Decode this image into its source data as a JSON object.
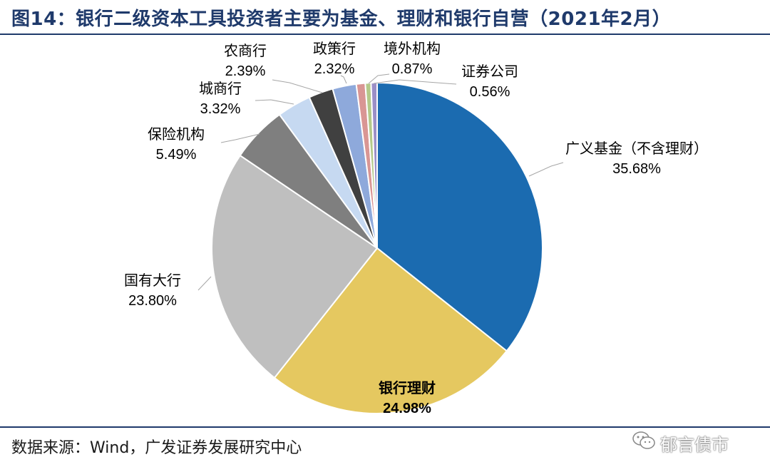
{
  "header": {
    "title": "图14：银行二级资本工具投资者主要为基金、理财和银行自营（2021年2月）"
  },
  "footer": {
    "source": "数据来源：Wind，广发证券发展研究中心",
    "watermark": "郁言债市",
    "watermark_icon": "wechat-icon"
  },
  "chart_data": {
    "type": "pie",
    "start_angle_deg": 0,
    "direction": "clockwise",
    "slices": [
      {
        "label": "广义基金（不含理财）",
        "percent_text": "35.68%",
        "value": 35.68,
        "color": "#1b6bb0"
      },
      {
        "label": "银行理财",
        "percent_text": "24.98%",
        "value": 24.98,
        "color": "#e5c860",
        "bold": true
      },
      {
        "label": "国有大行",
        "percent_text": "23.80%",
        "value": 23.8,
        "color": "#bfbfbf"
      },
      {
        "label": "保险机构",
        "percent_text": "5.49%",
        "value": 5.49,
        "color": "#7f7f7f"
      },
      {
        "label": "城商行",
        "percent_text": "3.32%",
        "value": 3.32,
        "color": "#c6d9f1"
      },
      {
        "label": "农商行",
        "percent_text": "2.39%",
        "value": 2.39,
        "color": "#404040"
      },
      {
        "label": "政策行",
        "percent_text": "2.32%",
        "value": 2.32,
        "color": "#8ea9db"
      },
      {
        "label": "境外机构",
        "percent_text": "0.87%",
        "value": 0.87,
        "color": "#d99694"
      },
      {
        "label": "证券公司",
        "percent_text": "0.56%",
        "value": 0.56,
        "color": "#b4c98a"
      },
      {
        "label": "",
        "percent_text": "",
        "value": 0.59,
        "color": "#9b8fc7"
      }
    ]
  }
}
